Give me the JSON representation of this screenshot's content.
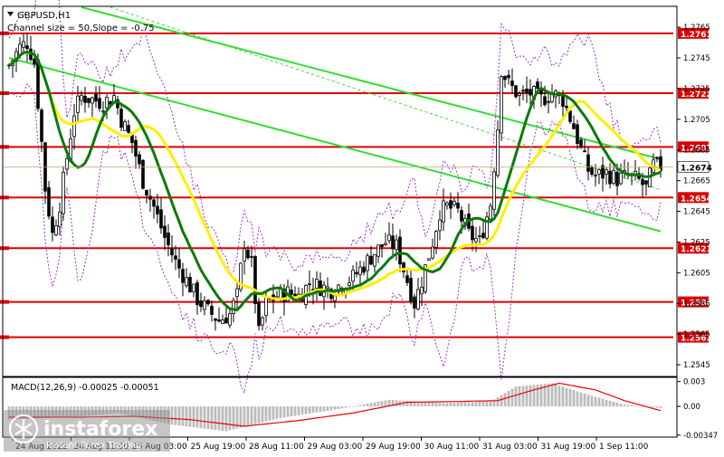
{
  "chart_data": {
    "type": "candlestick",
    "symbol_label": "GBPUSD,H1",
    "channel_label": "Channel size = 50,Slope = -0.75",
    "y_ticks": [
      "1.2765",
      "1.2745",
      "1.2725",
      "1.2705",
      "1.2685",
      "1.2665",
      "1.2645",
      "1.2625",
      "1.2605",
      "1.2585",
      "1.2565",
      "1.2545"
    ],
    "ylim": [
      1.2538,
      1.2778
    ],
    "current_price": "1.2674",
    "levels": [
      {
        "value": 1.2761,
        "label": "1.2761"
      },
      {
        "value": 1.2722,
        "label": "1.2722"
      },
      {
        "value": 1.2687,
        "label": "1.2687"
      },
      {
        "value": 1.2654,
        "label": "1.2654"
      },
      {
        "value": 1.2621,
        "label": "1.2621"
      },
      {
        "value": 1.2586,
        "label": "1.2586"
      },
      {
        "value": 1.2563,
        "label": "1.2563"
      }
    ],
    "x_ticks": [
      "24 Aug 2022",
      "24 Aug 11:00",
      "25 Aug 03:00",
      "25 Aug 19:00",
      "28 Aug 11:00",
      "29 Aug 03:00",
      "29 Aug 19:00",
      "30 Aug 11:00",
      "31 Aug 03:00",
      "31 Aug 19:00",
      "1 Sep 11:00"
    ],
    "close_anchors": [
      [
        0,
        1.274
      ],
      [
        3,
        1.2752
      ],
      [
        5,
        1.2755
      ],
      [
        7,
        1.2742
      ],
      [
        9,
        1.269
      ],
      [
        10,
        1.266
      ],
      [
        12,
        1.263
      ],
      [
        14,
        1.265
      ],
      [
        16,
        1.268
      ],
      [
        18,
        1.271
      ],
      [
        20,
        1.272
      ],
      [
        23,
        1.2718
      ],
      [
        26,
        1.2716
      ],
      [
        29,
        1.272
      ],
      [
        31,
        1.2705
      ],
      [
        34,
        1.269
      ],
      [
        37,
        1.2665
      ],
      [
        40,
        1.2648
      ],
      [
        43,
        1.2628
      ],
      [
        46,
        1.2612
      ],
      [
        49,
        1.26
      ],
      [
        52,
        1.2588
      ],
      [
        55,
        1.258
      ],
      [
        58,
        1.2574
      ],
      [
        61,
        1.2578
      ],
      [
        63,
        1.259
      ],
      [
        65,
        1.2625
      ],
      [
        67,
        1.261
      ],
      [
        69,
        1.2565
      ],
      [
        71,
        1.2585
      ],
      [
        74,
        1.259
      ],
      [
        77,
        1.2592
      ],
      [
        80,
        1.259
      ],
      [
        83,
        1.2598
      ],
      [
        86,
        1.2596
      ],
      [
        89,
        1.2594
      ],
      [
        92,
        1.2598
      ],
      [
        95,
        1.2602
      ],
      [
        98,
        1.261
      ],
      [
        101,
        1.2618
      ],
      [
        104,
        1.2625
      ],
      [
        107,
        1.2622
      ],
      [
        110,
        1.26
      ],
      [
        112,
        1.2585
      ],
      [
        114,
        1.26
      ],
      [
        117,
        1.2625
      ],
      [
        119,
        1.2645
      ],
      [
        121,
        1.2648
      ],
      [
        124,
        1.2645
      ],
      [
        127,
        1.263
      ],
      [
        130,
        1.2625
      ],
      [
        133,
        1.265
      ],
      [
        135,
        1.27
      ],
      [
        136,
        1.2738
      ],
      [
        138,
        1.2728
      ],
      [
        141,
        1.272
      ],
      [
        144,
        1.2722
      ],
      [
        147,
        1.2718
      ],
      [
        150,
        1.2722
      ],
      [
        153,
        1.2718
      ],
      [
        156,
        1.27
      ],
      [
        158,
        1.2685
      ],
      [
        160,
        1.2672
      ],
      [
        162,
        1.2668
      ],
      [
        165,
        1.267
      ],
      [
        168,
        1.2666
      ],
      [
        171,
        1.2668
      ],
      [
        174,
        1.2665
      ],
      [
        176,
        1.266
      ],
      [
        178,
        1.2675
      ],
      [
        180,
        1.2674
      ]
    ],
    "macd": {
      "label": "MACD(12,26,9) -0.00025 -0.00051",
      "y_ticks": [
        "0.003",
        "0.00",
        "-0.00347"
      ],
      "ylim": [
        -0.0036,
        0.0034
      ],
      "histogram": [
        [
          0,
          -0.0016
        ],
        [
          20,
          -0.0012
        ],
        [
          30,
          -0.0008
        ],
        [
          45,
          -0.0022
        ],
        [
          60,
          -0.003
        ],
        [
          75,
          -0.0014
        ],
        [
          90,
          -0.0004
        ],
        [
          105,
          0.0008
        ],
        [
          120,
          0.0004
        ],
        [
          133,
          0.0006
        ],
        [
          140,
          0.0024
        ],
        [
          150,
          0.0028
        ],
        [
          160,
          0.0014
        ],
        [
          170,
          0.0002
        ],
        [
          180,
          -0.0002
        ]
      ],
      "signal": [
        [
          0,
          -0.0013
        ],
        [
          20,
          -0.0013
        ],
        [
          35,
          -0.0012
        ],
        [
          50,
          -0.0016
        ],
        [
          65,
          -0.0024
        ],
        [
          80,
          -0.0017
        ],
        [
          95,
          -0.0008
        ],
        [
          110,
          0.0005
        ],
        [
          125,
          0.0006
        ],
        [
          135,
          0.0007
        ],
        [
          145,
          0.002
        ],
        [
          152,
          0.0028
        ],
        [
          162,
          0.002
        ],
        [
          170,
          0.0007
        ],
        [
          180,
          -0.0005
        ]
      ]
    }
  },
  "brand": {
    "name": "instaforex",
    "tagline": "Instant Forex Trading"
  },
  "colors": {
    "bull": "#ffffff",
    "bear": "#000000",
    "level": "#dd0000",
    "ma_yellow": "#ffee00",
    "ma_green": "#0a7a0a",
    "channel": "#33dd33",
    "macd_hist": "#bbbbbb",
    "macd_signal": "#ee0000"
  }
}
